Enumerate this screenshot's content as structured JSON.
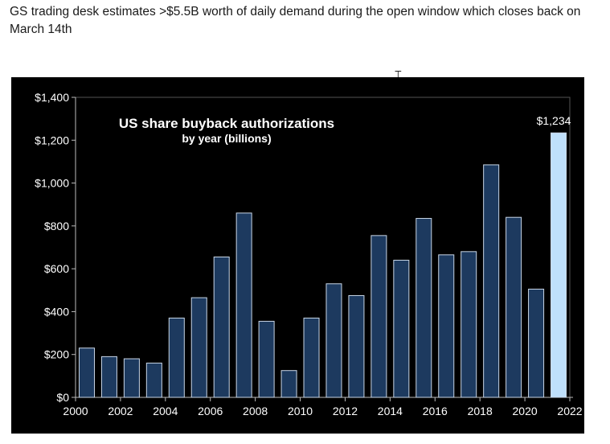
{
  "caption": "GS trading desk estimates >$5.5B worth of daily demand during the open window which closes back on March 14th",
  "cursor_icon": "text-cursor-icon",
  "colors": {
    "background": "#000000",
    "bar_fill": "#1d3a5f",
    "bar_stroke": "#c9d6e6",
    "highlight_bar_fill": "#bfe0fb",
    "text": "#ffffff",
    "axis": "#bbbbbb"
  },
  "chart_data": {
    "type": "bar",
    "title": "US share buyback authorizations",
    "subtitle": "by year (billions)",
    "xlabel": "",
    "ylabel": "",
    "categories": [
      2000,
      2001,
      2002,
      2003,
      2004,
      2005,
      2006,
      2007,
      2008,
      2009,
      2010,
      2011,
      2012,
      2013,
      2014,
      2015,
      2016,
      2017,
      2018,
      2019,
      2020,
      2021
    ],
    "values": [
      230,
      190,
      180,
      160,
      370,
      465,
      655,
      860,
      355,
      125,
      370,
      530,
      475,
      755,
      640,
      835,
      665,
      680,
      1085,
      840,
      505,
      1234
    ],
    "highlight_index": 21,
    "highlight_label": "$1,234",
    "ylim": [
      0,
      1400
    ],
    "yticks": [
      0,
      200,
      400,
      600,
      800,
      1000,
      1200,
      1400
    ],
    "ytick_labels": [
      "$0",
      "$200",
      "$400",
      "$600",
      "$800",
      "$1,000",
      "$1,200",
      "$1,400"
    ],
    "xticks": [
      2000,
      2002,
      2004,
      2006,
      2008,
      2010,
      2012,
      2014,
      2016,
      2018,
      2020,
      2022
    ],
    "xtick_labels": [
      "2000",
      "2002",
      "2004",
      "2006",
      "2008",
      "2010",
      "2012",
      "2014",
      "2016",
      "2018",
      "2020",
      "2022"
    ],
    "xlim": [
      1999.5,
      2021.5
    ],
    "grid": false,
    "legend": "none"
  }
}
